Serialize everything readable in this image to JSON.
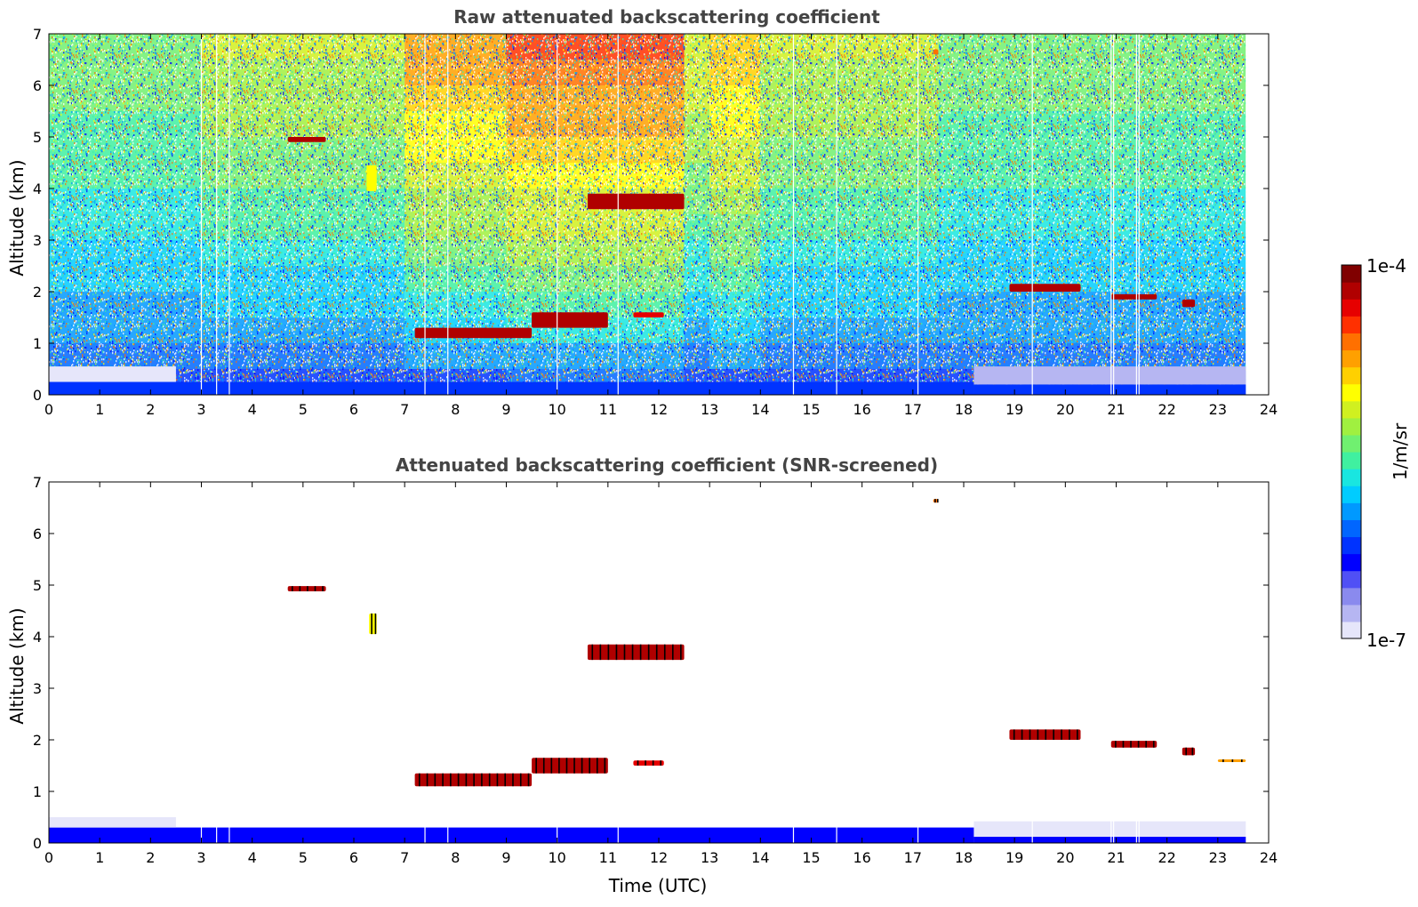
{
  "figure": {
    "colorbar": {
      "label": "1/m/sr",
      "max_label": "1e-4",
      "min_label": "1e-7",
      "colors": [
        "#e6e6fa",
        "#b6b6f2",
        "#8a8aee",
        "#5050f5",
        "#0000ff",
        "#0033ff",
        "#0066ff",
        "#0099ff",
        "#00ccff",
        "#19e6e0",
        "#40f0a0",
        "#70f070",
        "#a0f040",
        "#d0f020",
        "#ffff00",
        "#ffd000",
        "#ffa000",
        "#ff7000",
        "#ff3000",
        "#e60000",
        "#b00000",
        "#800000"
      ]
    },
    "xlabel": "Time (UTC)"
  },
  "chart_data": [
    {
      "type": "heatmap",
      "title": "Raw attenuated backscattering coefficient",
      "xlabel": "",
      "ylabel": "Altitude (km)",
      "xlim": [
        0,
        24
      ],
      "ylim": [
        0,
        7
      ],
      "xticks": [
        "0",
        "1",
        "2",
        "3",
        "4",
        "5",
        "6",
        "7",
        "8",
        "9",
        "10",
        "11",
        "12",
        "13",
        "14",
        "15",
        "16",
        "17",
        "18",
        "19",
        "20",
        "21",
        "22",
        "23",
        "24"
      ],
      "yticks": [
        "0",
        "1",
        "2",
        "3",
        "4",
        "5",
        "6",
        "7"
      ],
      "color_scale": "log",
      "crange": [
        "1e-7",
        "1e-4"
      ],
      "data_end_time": 23.55,
      "background_noise": [
        {
          "time": [
            0,
            2
          ],
          "level": 0.55
        },
        {
          "time": [
            2,
            3
          ],
          "level": 0.55
        },
        {
          "time": [
            3,
            7
          ],
          "level": 0.62
        },
        {
          "time": [
            7,
            9
          ],
          "level": 0.78
        },
        {
          "time": [
            9,
            12.5
          ],
          "level": 0.85
        },
        {
          "time": [
            12.5,
            13
          ],
          "level": 0.65
        },
        {
          "time": [
            13,
            14
          ],
          "level": 0.75
        },
        {
          "time": [
            14,
            17.5
          ],
          "level": 0.62
        },
        {
          "time": [
            17.5,
            23.55
          ],
          "level": 0.55
        }
      ],
      "cloud_layers": [
        {
          "time": [
            4.7,
            5.45
          ],
          "altitude": [
            4.9,
            5.0
          ],
          "level": 0.97
        },
        {
          "time": [
            6.25,
            6.45
          ],
          "altitude": [
            3.95,
            4.45
          ],
          "level": 0.68
        },
        {
          "time": [
            10.6,
            12.5
          ],
          "altitude": [
            3.6,
            3.9
          ],
          "level": 0.97
        },
        {
          "time": [
            7.2,
            9.5
          ],
          "altitude": [
            1.1,
            1.3
          ],
          "level": 0.95
        },
        {
          "time": [
            9.5,
            11.0
          ],
          "altitude": [
            1.3,
            1.6
          ],
          "level": 0.94
        },
        {
          "time": [
            11.5,
            12.1
          ],
          "altitude": [
            1.5,
            1.6
          ],
          "level": 0.92
        },
        {
          "time": [
            18.9,
            20.3
          ],
          "altitude": [
            2.0,
            2.15
          ],
          "level": 0.95
        },
        {
          "time": [
            20.9,
            21.8
          ],
          "altitude": [
            1.85,
            1.95
          ],
          "level": 0.93
        },
        {
          "time": [
            22.3,
            22.55
          ],
          "altitude": [
            1.7,
            1.85
          ],
          "level": 0.94
        },
        {
          "time": [
            17.4,
            17.5
          ],
          "altitude": [
            6.6,
            6.7
          ],
          "level": 0.8
        }
      ],
      "boundary_layer": [
        {
          "time": [
            0,
            18.2
          ],
          "altitude": [
            0,
            0.25
          ],
          "level": 0.25
        },
        {
          "time": [
            18.2,
            23.55
          ],
          "altitude": [
            0,
            0.2
          ],
          "level": 0.25
        },
        {
          "time": [
            0,
            2.5
          ],
          "altitude": [
            0.25,
            0.55
          ],
          "level": 0.02
        },
        {
          "time": [
            18.2,
            23.55
          ],
          "altitude": [
            0.2,
            0.55
          ],
          "level": 0.03
        }
      ],
      "missing_profiles": [
        3.0,
        3.3,
        3.55,
        7.4,
        7.85,
        10.0,
        11.2,
        14.65,
        15.5,
        17.1,
        19.35,
        20.9,
        20.95,
        21.4,
        21.45
      ]
    },
    {
      "type": "heatmap",
      "title": "Attenuated backscattering coefficient (SNR-screened)",
      "xlabel": "Time (UTC)",
      "ylabel": "Altitude (km)",
      "xlim": [
        0,
        24
      ],
      "ylim": [
        0,
        7
      ],
      "xticks": [
        "0",
        "1",
        "2",
        "3",
        "4",
        "5",
        "6",
        "7",
        "8",
        "9",
        "10",
        "11",
        "12",
        "13",
        "14",
        "15",
        "16",
        "17",
        "18",
        "19",
        "20",
        "21",
        "22",
        "23",
        "24"
      ],
      "yticks": [
        "0",
        "1",
        "2",
        "3",
        "4",
        "5",
        "6",
        "7"
      ],
      "color_scale": "log",
      "crange": [
        "1e-7",
        "1e-4"
      ],
      "data_end_time": 23.55,
      "cloud_layers": [
        {
          "time": [
            4.7,
            5.45
          ],
          "altitude": [
            4.88,
            4.98
          ],
          "level": 0.97
        },
        {
          "time": [
            6.3,
            6.45
          ],
          "altitude": [
            4.05,
            4.45
          ],
          "level": 0.68
        },
        {
          "time": [
            10.6,
            12.5
          ],
          "altitude": [
            3.55,
            3.85
          ],
          "level": 0.97
        },
        {
          "time": [
            7.2,
            9.5
          ],
          "altitude": [
            1.1,
            1.35
          ],
          "level": 0.95
        },
        {
          "time": [
            9.5,
            11.0
          ],
          "altitude": [
            1.35,
            1.65
          ],
          "level": 0.94
        },
        {
          "time": [
            11.5,
            12.1
          ],
          "altitude": [
            1.5,
            1.6
          ],
          "level": 0.92
        },
        {
          "time": [
            18.9,
            20.3
          ],
          "altitude": [
            2.0,
            2.2
          ],
          "level": 0.95
        },
        {
          "time": [
            20.9,
            21.8
          ],
          "altitude": [
            1.85,
            1.98
          ],
          "level": 0.93
        },
        {
          "time": [
            22.3,
            22.55
          ],
          "altitude": [
            1.7,
            1.85
          ],
          "level": 0.94
        },
        {
          "time": [
            23.0,
            23.55
          ],
          "altitude": [
            1.58,
            1.62
          ],
          "level": 0.75
        },
        {
          "time": [
            17.4,
            17.5
          ],
          "altitude": [
            6.6,
            6.67
          ],
          "level": 0.8
        }
      ],
      "boundary_layer": [
        {
          "time": [
            0,
            18.2
          ],
          "altitude": [
            0,
            0.3
          ],
          "level": 0.2
        },
        {
          "time": [
            0,
            2.5
          ],
          "altitude": [
            0.3,
            0.5
          ],
          "level": 0.02
        },
        {
          "time": [
            18.2,
            23.55
          ],
          "altitude": [
            0,
            0.12
          ],
          "level": 0.2
        },
        {
          "time": [
            18.2,
            23.55
          ],
          "altitude": [
            0.12,
            0.42
          ],
          "level": 0.02
        }
      ],
      "missing_profiles": [
        3.0,
        3.3,
        3.55,
        7.4,
        7.85,
        10.0,
        11.2,
        14.65,
        15.5,
        17.1,
        19.35,
        20.9,
        20.95,
        21.4,
        21.45
      ]
    }
  ]
}
